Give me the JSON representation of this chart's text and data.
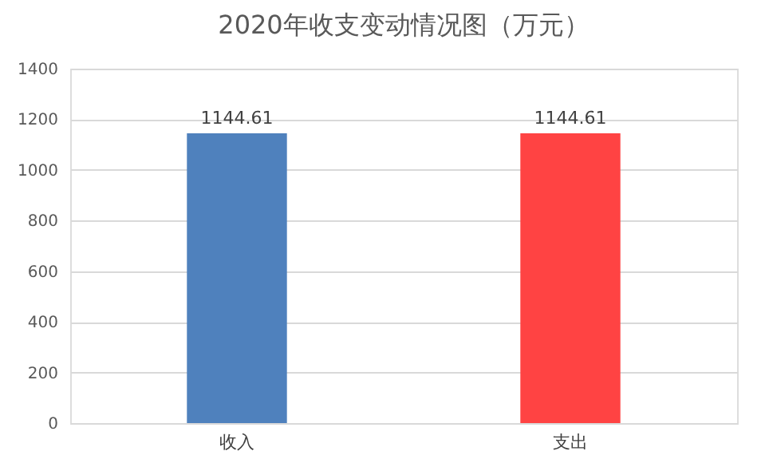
{
  "chart_data": {
    "type": "bar",
    "title": "2020年收支变动情况图（万元）",
    "categories": [
      "收入",
      "支出"
    ],
    "values": [
      1144.61,
      1144.61
    ],
    "colors": [
      "#4f81bd",
      "#ff4343"
    ],
    "ylim": [
      0,
      1400
    ],
    "yticks": [
      0,
      200,
      400,
      600,
      800,
      1000,
      1200,
      1400
    ],
    "grid": "y",
    "data_labels": true
  }
}
